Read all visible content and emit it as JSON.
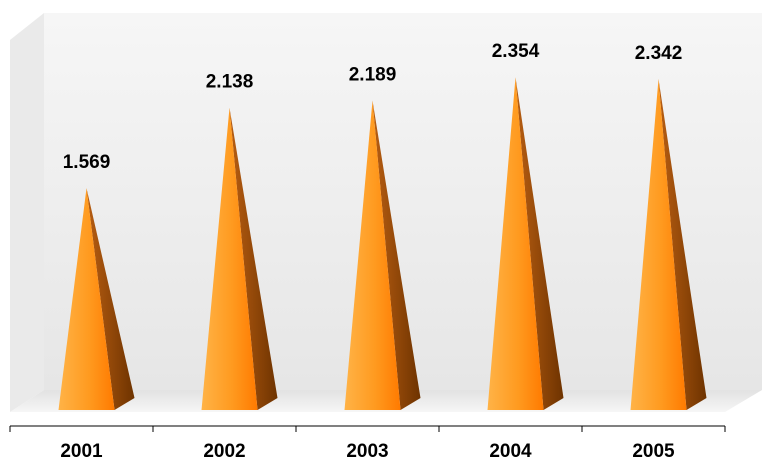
{
  "chart_data": {
    "type": "bar",
    "bar_shape": "pyramid",
    "categories": [
      "2001",
      "2002",
      "2003",
      "2004",
      "2005"
    ],
    "values": [
      1.569,
      2.138,
      2.189,
      2.354,
      2.342
    ],
    "value_labels": [
      "1.569",
      "2.138",
      "2.189",
      "2.354",
      "2.342"
    ],
    "ylim": [
      0,
      2.5
    ],
    "grid": false,
    "legend": "none",
    "colors": {
      "face_light": "#FFB347",
      "face_mid": "#FF9A1F",
      "face_dark": "#FF7A00",
      "side_light": "#B85E12",
      "side_dark": "#6E3300",
      "wall": "#F2F2F2",
      "axis": "#000000"
    }
  }
}
